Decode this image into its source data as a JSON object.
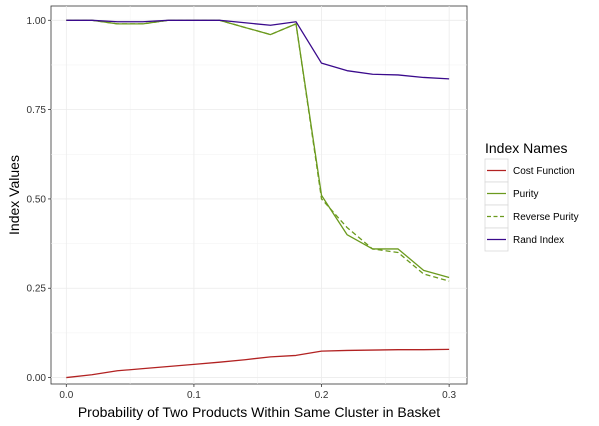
{
  "chart_data": {
    "type": "line",
    "xlabel": "Probability of Two Products Within Same Cluster in Basket",
    "ylabel": "Index Values",
    "xlim": [
      -0.012,
      0.314
    ],
    "ylim": [
      -0.018,
      1.04
    ],
    "x_ticks": [
      {
        "value": 0.0,
        "label": "0.0"
      },
      {
        "value": 0.1,
        "label": "0.1"
      },
      {
        "value": 0.2,
        "label": "0.2"
      },
      {
        "value": 0.3,
        "label": "0.3"
      }
    ],
    "y_ticks": [
      {
        "value": 0.0,
        "label": "0.00"
      },
      {
        "value": 0.25,
        "label": "0.25"
      },
      {
        "value": 0.5,
        "label": "0.50"
      },
      {
        "value": 0.75,
        "label": "0.75"
      },
      {
        "value": 1.0,
        "label": "1.00"
      }
    ],
    "grid": true,
    "legend": {
      "title": "Index Names",
      "position": "right"
    },
    "x": [
      0.0,
      0.02,
      0.04,
      0.06,
      0.08,
      0.1,
      0.12,
      0.14,
      0.16,
      0.18,
      0.2,
      0.22,
      0.24,
      0.26,
      0.28,
      0.3
    ],
    "series": [
      {
        "name": "Cost Function",
        "color": "#b22222",
        "dash": "solid",
        "values": [
          0.0,
          0.008,
          0.019,
          0.025,
          0.031,
          0.037,
          0.043,
          0.05,
          0.058,
          0.062,
          0.074,
          0.076,
          0.077,
          0.078,
          0.078,
          0.079
        ]
      },
      {
        "name": "Purity",
        "color": "#6b9a1e",
        "dash": "solid",
        "values": [
          1.0,
          1.0,
          0.99,
          0.99,
          1.0,
          1.0,
          1.0,
          0.98,
          0.96,
          0.99,
          0.51,
          0.4,
          0.36,
          0.36,
          0.3,
          0.28
        ]
      },
      {
        "name": "Reverse Purity",
        "color": "#6b9a1e",
        "dash": "dashed",
        "values": [
          1.0,
          1.0,
          0.99,
          0.99,
          1.0,
          1.0,
          1.0,
          0.98,
          0.96,
          0.99,
          0.5,
          0.42,
          0.36,
          0.35,
          0.29,
          0.27
        ]
      },
      {
        "name": "Rand Index",
        "color": "#3a0a8c",
        "dash": "solid",
        "values": [
          1.0,
          1.0,
          0.996,
          0.996,
          1.0,
          1.0,
          1.0,
          0.993,
          0.986,
          0.996,
          0.88,
          0.859,
          0.849,
          0.847,
          0.84,
          0.836
        ]
      }
    ]
  }
}
